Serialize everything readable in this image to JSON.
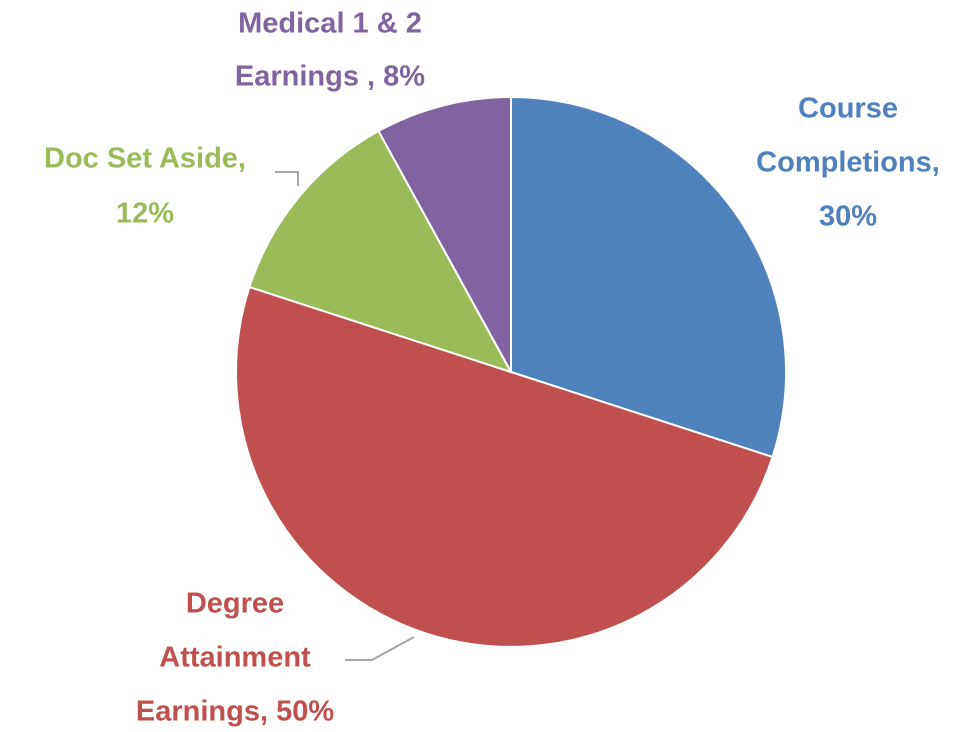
{
  "chart_data": {
    "type": "pie",
    "values": [
      30,
      50,
      12,
      8
    ],
    "value_labels": [
      [
        "Course",
        "Completions,",
        "30%"
      ],
      [
        "Degree",
        "Attainment",
        "Earnings, 50%"
      ],
      [
        "Doc Set Aside,",
        "12%"
      ],
      [
        "Medical 1 & 2",
        "Earnings , 8%"
      ]
    ],
    "colors": [
      "#4f81bd",
      "#c0504d",
      "#9bbb59",
      "#8064a2"
    ]
  }
}
